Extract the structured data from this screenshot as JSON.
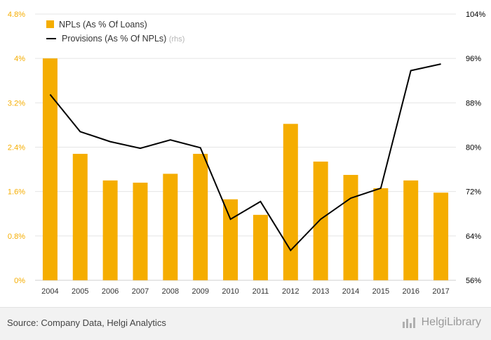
{
  "chart_data": {
    "type": "bar",
    "categories": [
      "2004",
      "2005",
      "2006",
      "2007",
      "2008",
      "2009",
      "2010",
      "2011",
      "2012",
      "2013",
      "2014",
      "2015",
      "2016",
      "2017"
    ],
    "series": [
      {
        "name": "NPLs (As % Of Loans)",
        "type": "bar",
        "axis": "left",
        "color": "#f5ad00",
        "values": [
          4.0,
          2.28,
          1.8,
          1.76,
          1.92,
          2.28,
          1.46,
          1.18,
          2.82,
          2.14,
          1.9,
          1.66,
          1.8,
          1.58
        ]
      },
      {
        "name": "Provisions (As % Of NPLs)",
        "name_suffix": "(rhs)",
        "type": "line",
        "axis": "right",
        "color": "#000000",
        "values": [
          89.5,
          82.8,
          81.0,
          79.8,
          81.3,
          79.9,
          67.0,
          70.2,
          61.4,
          67.0,
          70.8,
          72.6,
          93.8,
          95.0
        ]
      }
    ],
    "y_left": {
      "ticks": [
        "0%",
        "0.8%",
        "1.6%",
        "2.4%",
        "3.2%",
        "4%",
        "4.8%"
      ],
      "min": 0,
      "max": 4.8,
      "color": "#f5ad00"
    },
    "y_right": {
      "ticks": [
        "56%",
        "64%",
        "72%",
        "80%",
        "88%",
        "96%",
        "104%"
      ],
      "min": 56,
      "max": 104,
      "color": "#000000"
    },
    "grid": true,
    "legend_position": "top-left"
  },
  "footer": {
    "source": "Source: Company Data, Helgi Analytics",
    "brand": "HelgiLibrary"
  }
}
